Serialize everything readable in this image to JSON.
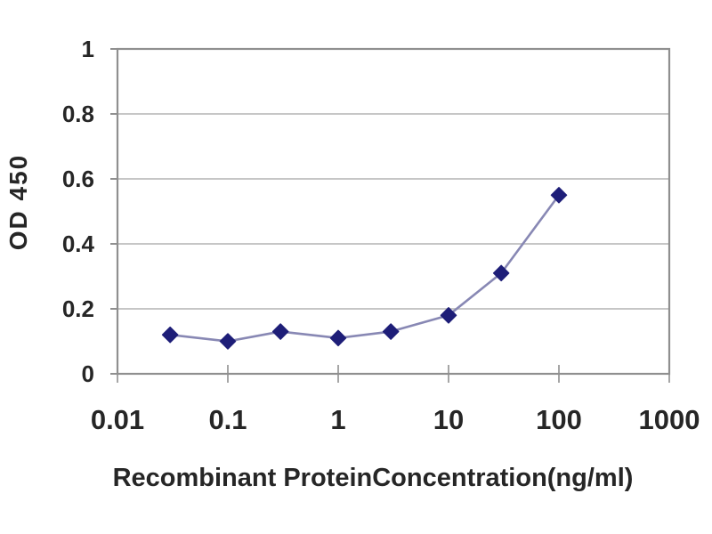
{
  "chart_data": {
    "type": "line",
    "title": "",
    "xlabel": "Recombinant ProteinConcentration(ng/ml)",
    "ylabel": "OD 450",
    "x_scale": "log",
    "y_scale": "linear",
    "xlim": [
      0.01,
      1000
    ],
    "ylim": [
      0,
      1
    ],
    "x_ticks": [
      0.01,
      0.1,
      1,
      10,
      100,
      1000
    ],
    "x_tick_labels": [
      "0.01",
      "0.1",
      "1",
      "10",
      "100",
      "1000"
    ],
    "y_ticks": [
      0,
      0.2,
      0.4,
      0.6,
      0.8,
      1
    ],
    "y_tick_labels": [
      "0",
      "0.2",
      "0.4",
      "0.6",
      "0.8",
      "1"
    ],
    "grid": "horizontal",
    "legend": "none",
    "series": [
      {
        "marker": "diamond",
        "x": [
          0.03,
          0.1,
          0.3,
          1,
          3,
          10,
          30,
          100
        ],
        "y": [
          0.12,
          0.1,
          0.13,
          0.11,
          0.13,
          0.18,
          0.31,
          0.55
        ]
      }
    ],
    "colors": {
      "marker": "#1e1e78",
      "line": "#8888b4",
      "grid": "#c6c6c6",
      "axis": "#8f8f8f",
      "text": "#262626",
      "background": "#ffffff"
    }
  }
}
